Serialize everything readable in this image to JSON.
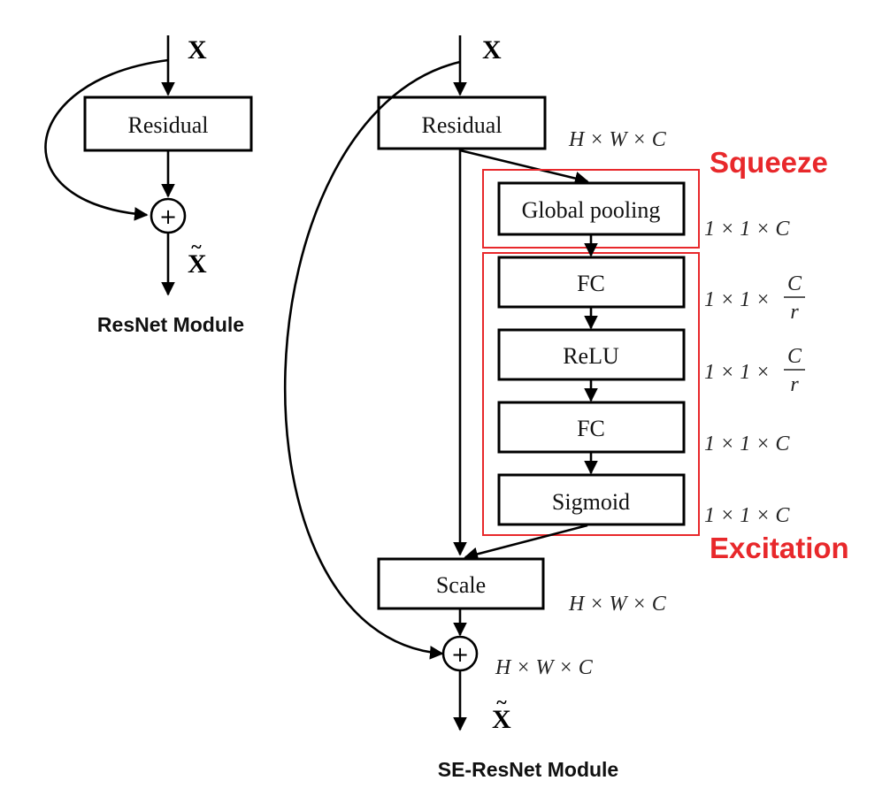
{
  "resnet": {
    "input_label": "X",
    "block_label": "Residual",
    "sum_symbol": "+",
    "output_label": "X",
    "output_tilde": "~",
    "caption": "ResNet Module"
  },
  "se_resnet": {
    "input_label": "X",
    "residual_label": "Residual",
    "residual_dims": "H × W × C",
    "squeeze_label": "Squeeze",
    "excitation_label": "Excitation",
    "global_pooling_label": "Global pooling",
    "global_pooling_dims": "1 × 1 × C",
    "fc1_label": "FC",
    "fc1_dims_prefix": "1 × 1 ×",
    "fc1_dims_numerator": "C",
    "fc1_dims_denominator": "r",
    "relu_label": "ReLU",
    "relu_dims_prefix": "1 × 1 ×",
    "relu_dims_numerator": "C",
    "relu_dims_denominator": "r",
    "fc2_label": "FC",
    "fc2_dims": "1 × 1 × C",
    "sigmoid_label": "Sigmoid",
    "sigmoid_dims": "1 × 1 × C",
    "scale_label": "Scale",
    "scale_dims": "H × W × C",
    "sum_symbol": "+",
    "sum_dims": "H × W × C",
    "output_label": "X",
    "output_tilde": "~",
    "caption": "SE-ResNet Module"
  },
  "colors": {
    "accent_red": "#e8282b",
    "stroke": "#000000",
    "background": "#ffffff"
  }
}
